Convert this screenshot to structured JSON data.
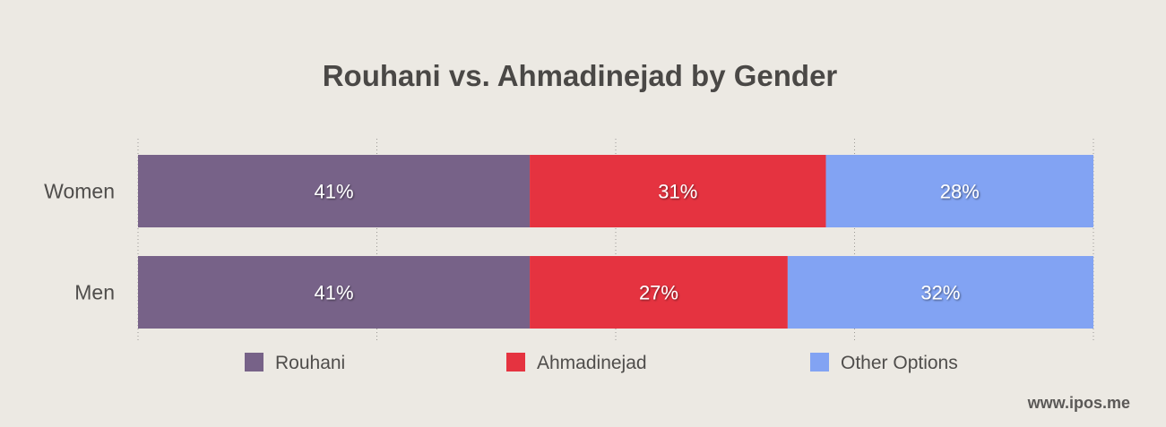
{
  "chart_data": {
    "type": "bar",
    "orientation": "horizontal",
    "stacked": true,
    "title": "Rouhani vs. Ahmadinejad by Gender",
    "categories": [
      "Women",
      "Men"
    ],
    "series": [
      {
        "name": "Rouhani",
        "values": [
          41,
          41
        ],
        "labels": [
          "41%",
          "41%"
        ],
        "color": "#776288"
      },
      {
        "name": "Ahmadinejad",
        "values": [
          31,
          27
        ],
        "labels": [
          "31%",
          "27%"
        ],
        "color": "#e53340"
      },
      {
        "name": "Other Options",
        "values": [
          28,
          32
        ],
        "labels": [
          "28%",
          "32%"
        ],
        "color": "#82a3f3"
      }
    ],
    "xlim": [
      0,
      100
    ],
    "grid": true,
    "legend": "bottom"
  },
  "source": "www.ipos.me"
}
